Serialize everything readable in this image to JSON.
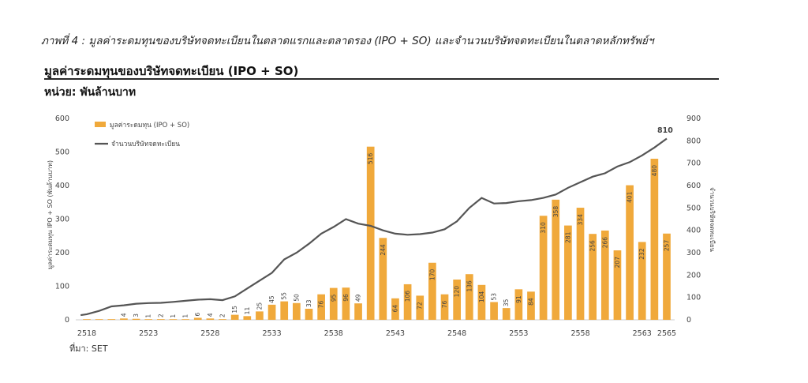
{
  "caption": "ภาพที่ 4 : มูลค่าระดมทุนของบริษัทจดทะเบียนในตลาดแรกและตลาดรอง (IPO + SO) และจำนวนบริษัทจดทะเบียนในตลาดหลักทรัพย์ฯ",
  "source": "ที่มา: SET",
  "colors": {
    "bar": "#F0A93B",
    "line": "#555555",
    "rule": "#2a2a2a"
  },
  "chart_data": {
    "type": "bar+line",
    "title": "มูลค่าระดมทุนของบริษัทจดทะเบียน (IPO + SO)",
    "unit": "หน่วย: พันล้านบาท",
    "ylabel_left": "มูลค่าระดมทุน IPO + SO (พันล้านบาท)",
    "ylabel_right": "จำนวนบริษัทจดทะเบียน",
    "ylim_left": [
      0,
      600
    ],
    "ylim_right": [
      0,
      900
    ],
    "yticks_left": [
      0,
      100,
      200,
      300,
      400,
      500,
      600
    ],
    "yticks_right": [
      0,
      100,
      200,
      300,
      400,
      500,
      600,
      700,
      800,
      900
    ],
    "x_tick_labels": [
      {
        "year": 2518,
        "label": "2518"
      },
      {
        "year": 2523,
        "label": "2523"
      },
      {
        "year": 2528,
        "label": "2528"
      },
      {
        "year": 2533,
        "label": "2533"
      },
      {
        "year": 2538,
        "label": "2538"
      },
      {
        "year": 2543,
        "label": "2543"
      },
      {
        "year": 2548,
        "label": "2548"
      },
      {
        "year": 2553,
        "label": "2553"
      },
      {
        "year": 2558,
        "label": "2558"
      },
      {
        "year": 2563,
        "label": "2563"
      },
      {
        "year": 2565,
        "label": "2565"
      }
    ],
    "legend": [
      "มูลค่าระดมทุน (IPO + SO)",
      "จำนวนบริษัทจดทะเบียน"
    ],
    "years": [
      2518,
      2519,
      2520,
      2521,
      2522,
      2523,
      2524,
      2525,
      2526,
      2527,
      2528,
      2529,
      2530,
      2531,
      2532,
      2533,
      2534,
      2535,
      2536,
      2537,
      2538,
      2539,
      2540,
      2541,
      2542,
      2543,
      2544,
      2545,
      2546,
      2547,
      2548,
      2549,
      2550,
      2551,
      2552,
      2553,
      2554,
      2555,
      2556,
      2557,
      2558,
      2559,
      2560,
      2561,
      2562,
      2563,
      2564,
      2565
    ],
    "bar_values": [
      1,
      1,
      2,
      4,
      3,
      1,
      2,
      1,
      1,
      6,
      4,
      2,
      15,
      11,
      25,
      45,
      55,
      50,
      33,
      76,
      95,
      96,
      49,
      516,
      244,
      64,
      106,
      72,
      170,
      76,
      120,
      136,
      104,
      53,
      35,
      91,
      84,
      310,
      358,
      281,
      334,
      256,
      266,
      207,
      401,
      232,
      480,
      257
    ],
    "bar_labels": [
      "",
      "",
      "",
      "4",
      "3",
      "1",
      "2",
      "1",
      "1",
      "6",
      "4",
      "2",
      "15",
      "11",
      "25",
      "45",
      "55",
      "50",
      "33",
      "76",
      "95",
      "96",
      "49",
      "516",
      "244",
      "64",
      "106",
      "72",
      "170",
      "76",
      "120",
      "136",
      "104",
      "53",
      "35",
      "91",
      "84",
      "310",
      "358",
      "281",
      "334",
      "256",
      "266",
      "207",
      "401",
      "232",
      "480",
      "257"
    ],
    "line_values": [
      21,
      25,
      40,
      60,
      65,
      72,
      75,
      76,
      80,
      85,
      90,
      92,
      88,
      105,
      140,
      175,
      210,
      270,
      300,
      340,
      385,
      415,
      450,
      430,
      420,
      400,
      385,
      380,
      383,
      390,
      405,
      440,
      500,
      545,
      520,
      522,
      530,
      535,
      545,
      560,
      590,
      615,
      640,
      655,
      685,
      705,
      735,
      770,
      810
    ],
    "line_years": [
      2517.5,
      2518,
      2519,
      2520,
      2521,
      2522,
      2523,
      2524,
      2525,
      2526,
      2527,
      2528,
      2529,
      2530,
      2531,
      2532,
      2533,
      2534,
      2535,
      2536,
      2537,
      2538,
      2539,
      2540,
      2541,
      2542,
      2543,
      2544,
      2545,
      2546,
      2547,
      2548,
      2549,
      2550,
      2551,
      2552,
      2553,
      2554,
      2555,
      2556,
      2557,
      2558,
      2559,
      2560,
      2561,
      2562,
      2563,
      2564,
      2565
    ],
    "line_end_label": "810"
  }
}
